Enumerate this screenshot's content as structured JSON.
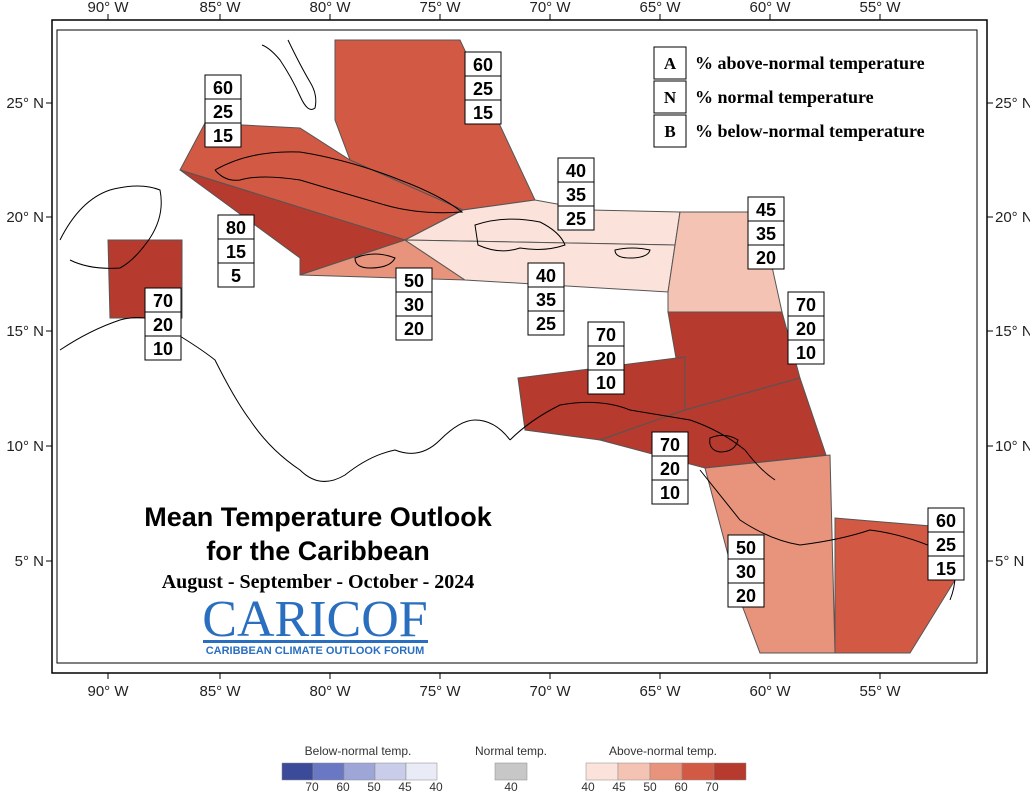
{
  "map": {
    "title_line1": "Mean Temperature Outlook",
    "title_line2": "for the Caribbean",
    "period": "August - September - October - 2024",
    "logo_main": "CARICOF",
    "logo_sub": "CARIBBEAN CLIMATE OUTLOOK FORUM",
    "lon_ticks": [
      "90° W",
      "85° W",
      "80° W",
      "75° W",
      "70° W",
      "65° W",
      "60° W",
      "55° W"
    ],
    "lat_ticks": [
      "25° N",
      "20° N",
      "15° N",
      "10° N",
      "5° N"
    ],
    "legend": [
      {
        "letter": "A",
        "text": "% above-normal temperature"
      },
      {
        "letter": "N",
        "text": "% normal temperature"
      },
      {
        "letter": "B",
        "text": "% below-normal temperature"
      }
    ],
    "regions": [
      {
        "id": "bahamas",
        "above": "60",
        "normal": "25",
        "below": "15",
        "color": "#d25a44"
      },
      {
        "id": "cuba",
        "above": "60",
        "normal": "25",
        "below": "15",
        "color": "#d25a44"
      },
      {
        "id": "cayman-jamaica-west",
        "above": "80",
        "normal": "15",
        "below": "5",
        "color": "#b63a2e"
      },
      {
        "id": "jamaica",
        "above": "50",
        "normal": "30",
        "below": "20",
        "color": "#e8937b"
      },
      {
        "id": "hispaniola-north",
        "above": "40",
        "normal": "35",
        "below": "25",
        "color": "#fbe3db"
      },
      {
        "id": "hispaniola-south",
        "above": "40",
        "normal": "35",
        "below": "25",
        "color": "#fbe3db"
      },
      {
        "id": "leeward",
        "above": "45",
        "normal": "35",
        "below": "20",
        "color": "#f5c3b3"
      },
      {
        "id": "windward",
        "above": "70",
        "normal": "20",
        "below": "10",
        "color": "#b63a2e"
      },
      {
        "id": "belize",
        "above": "70",
        "normal": "20",
        "below": "10",
        "color": "#b63a2e"
      },
      {
        "id": "abc-islands",
        "above": "70",
        "normal": "20",
        "below": "10",
        "color": "#b63a2e"
      },
      {
        "id": "trinidad",
        "above": "70",
        "normal": "20",
        "below": "10",
        "color": "#b63a2e"
      },
      {
        "id": "guyana",
        "above": "50",
        "normal": "30",
        "below": "20",
        "color": "#e8937b"
      },
      {
        "id": "suriname-guiana",
        "above": "60",
        "normal": "25",
        "below": "15",
        "color": "#d25a44"
      }
    ],
    "colorbar": {
      "below_title": "Below-normal temp.",
      "normal_title": "Normal temp.",
      "above_title": "Above-normal temp.",
      "below_ticks": [
        "70",
        "60",
        "50",
        "45",
        "40"
      ],
      "normal_ticks": [
        "40"
      ],
      "above_ticks": [
        "40",
        "45",
        "50",
        "60",
        "70"
      ],
      "below_colors": [
        "#3b4a99",
        "#6a78c4",
        "#9ea6d8",
        "#c9cdea",
        "#e9ebf7"
      ],
      "normal_color": "#c7c7c7",
      "above_colors": [
        "#fbe3db",
        "#f5c3b3",
        "#e8937b",
        "#d25a44",
        "#b63a2e"
      ]
    }
  }
}
